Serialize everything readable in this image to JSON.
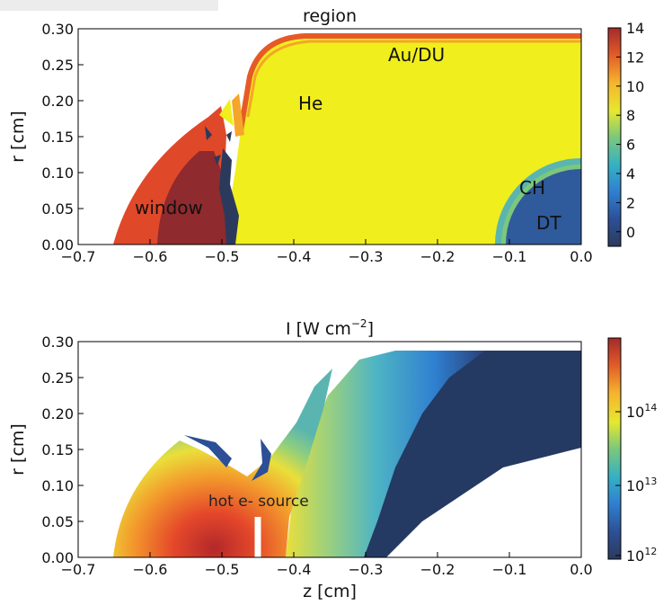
{
  "chart_data": [
    {
      "type": "heatmap",
      "title": "region",
      "xlabel": "",
      "ylabel": "r  [cm]",
      "xlim": [
        -0.7,
        0.0
      ],
      "ylim": [
        0.0,
        0.3
      ],
      "x_ticks": [
        "−0.7",
        "−0.6",
        "−0.5",
        "−0.4",
        "−0.3",
        "−0.2",
        "−0.1",
        "0.0"
      ],
      "y_ticks": [
        "0.00",
        "0.05",
        "0.10",
        "0.15",
        "0.20",
        "0.25",
        "0.30"
      ],
      "colorbar": {
        "range": [
          -1,
          14
        ],
        "ticks": [
          "14",
          "12",
          "10",
          "8",
          "6",
          "4",
          "2",
          "0"
        ]
      },
      "annotations": [
        "Au/DU",
        "He",
        "window",
        "CH",
        "DT"
      ],
      "regions": [
        {
          "name": "window",
          "value": 11
        },
        {
          "name": "He",
          "value": 8
        },
        {
          "name": "Au/DU",
          "value": 10
        },
        {
          "name": "CH",
          "value": 4
        },
        {
          "name": "DT",
          "value": 1
        }
      ]
    },
    {
      "type": "heatmap",
      "title_main": "I  [W cm",
      "title_exp": "−2",
      "title_end": "]",
      "xlabel": "z  [cm]",
      "ylabel": "r  [cm]",
      "xlim": [
        -0.7,
        0.0
      ],
      "ylim": [
        0.0,
        0.3
      ],
      "x_ticks": [
        "−0.7",
        "−0.6",
        "−0.5",
        "−0.4",
        "−0.3",
        "−0.2",
        "−0.1",
        "0.0"
      ],
      "y_ticks": [
        "0.00",
        "0.05",
        "0.10",
        "0.15",
        "0.20",
        "0.25",
        "0.30"
      ],
      "colorbar": {
        "scale": "log",
        "range": [
          1000000000000.0,
          1000000000000000.0
        ],
        "ticks": [
          {
            "base": "10",
            "exp": "14"
          },
          {
            "base": "10",
            "exp": "13"
          },
          {
            "base": "10",
            "exp": "12"
          }
        ]
      },
      "annotations": [
        "hot e- source"
      ],
      "source_z": -0.45
    }
  ]
}
